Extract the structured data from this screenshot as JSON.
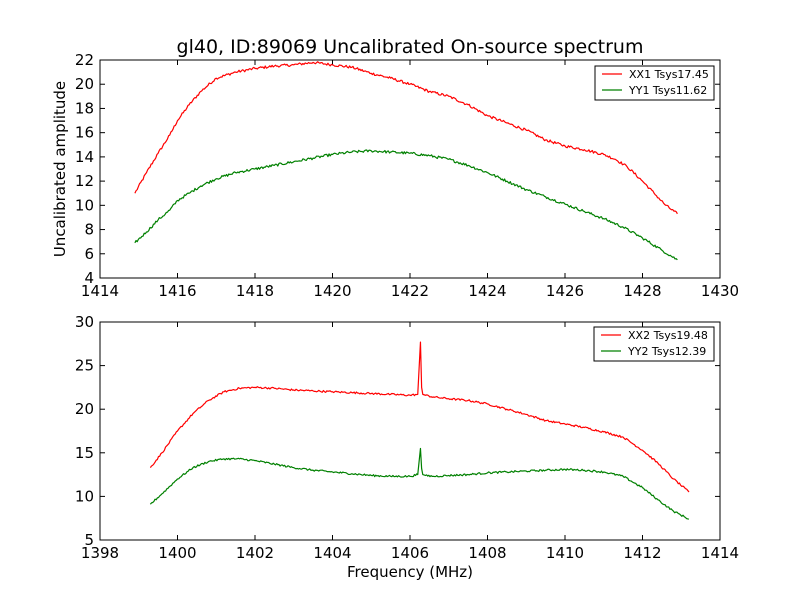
{
  "chart_data": [
    {
      "type": "line",
      "title": "gl40, ID:89069 Uncalibrated On-source spectrum",
      "xlabel": "",
      "ylabel": "Uncalibrated amplitude",
      "xlim": [
        1414,
        1430
      ],
      "ylim": [
        4,
        22
      ],
      "xticks": [
        1414,
        1416,
        1418,
        1420,
        1422,
        1424,
        1426,
        1428,
        1430
      ],
      "yticks": [
        4,
        6,
        8,
        10,
        12,
        14,
        16,
        18,
        20,
        22
      ],
      "grid": false,
      "legend_position": "top-right",
      "series": [
        {
          "name": "XX1 Tsys17.45",
          "color": "#ff0000",
          "x": [
            1414.9,
            1415.2,
            1415.5,
            1415.8,
            1416.0,
            1416.3,
            1416.6,
            1417.0,
            1417.5,
            1418.0,
            1418.5,
            1419.0,
            1419.5,
            1420.0,
            1420.5,
            1421.0,
            1421.5,
            1422.0,
            1422.5,
            1423.0,
            1423.5,
            1424.0,
            1424.5,
            1425.0,
            1425.5,
            1426.0,
            1426.5,
            1427.0,
            1427.3,
            1427.6,
            1428.0,
            1428.3,
            1428.6,
            1428.9
          ],
          "y": [
            11.0,
            12.7,
            14.3,
            15.8,
            17.0,
            18.3,
            19.4,
            20.5,
            21.0,
            21.3,
            21.5,
            21.6,
            21.8,
            21.6,
            21.4,
            20.9,
            20.5,
            20.0,
            19.4,
            19.0,
            18.3,
            17.4,
            16.8,
            16.2,
            15.4,
            14.9,
            14.6,
            14.2,
            13.8,
            13.2,
            12.0,
            11.0,
            10.0,
            9.3
          ]
        },
        {
          "name": "YY1 Tsys11.62",
          "color": "#008000",
          "x": [
            1414.9,
            1415.2,
            1415.5,
            1415.8,
            1416.0,
            1416.3,
            1416.6,
            1417.0,
            1417.5,
            1418.0,
            1418.5,
            1419.0,
            1419.5,
            1420.0,
            1420.5,
            1421.0,
            1421.5,
            1422.0,
            1422.5,
            1423.0,
            1423.5,
            1424.0,
            1424.5,
            1425.0,
            1425.5,
            1426.0,
            1426.5,
            1427.0,
            1427.5,
            1428.0,
            1428.5,
            1428.9
          ],
          "y": [
            6.9,
            7.8,
            8.8,
            9.6,
            10.4,
            11.0,
            11.6,
            12.2,
            12.7,
            13.0,
            13.3,
            13.6,
            13.9,
            14.2,
            14.4,
            14.5,
            14.4,
            14.3,
            14.1,
            13.8,
            13.3,
            12.7,
            12.0,
            11.3,
            10.7,
            10.1,
            9.5,
            8.9,
            8.2,
            7.3,
            6.3,
            5.5
          ]
        }
      ]
    },
    {
      "type": "line",
      "title": "",
      "xlabel": "Frequency (MHz)",
      "ylabel": "",
      "xlim": [
        1398,
        1414
      ],
      "ylim": [
        5,
        30
      ],
      "xticks": [
        1398,
        1400,
        1402,
        1404,
        1406,
        1408,
        1410,
        1412,
        1414
      ],
      "yticks": [
        5,
        10,
        15,
        20,
        25,
        30
      ],
      "grid": false,
      "legend_position": "top-right",
      "series": [
        {
          "name": "XX2 Tsys19.48",
          "color": "#ff0000",
          "x": [
            1399.3,
            1399.6,
            1400.0,
            1400.4,
            1400.8,
            1401.2,
            1401.6,
            1402.0,
            1402.5,
            1403.0,
            1403.5,
            1404.0,
            1404.5,
            1405.0,
            1405.5,
            1406.0,
            1406.2,
            1406.27,
            1406.3,
            1406.33,
            1406.4,
            1406.6,
            1407.0,
            1407.5,
            1408.0,
            1408.5,
            1409.0,
            1409.5,
            1410.0,
            1410.5,
            1411.0,
            1411.5,
            1412.0,
            1412.4,
            1412.8,
            1413.2
          ],
          "y": [
            13.3,
            15.0,
            17.5,
            19.5,
            21.0,
            22.0,
            22.4,
            22.5,
            22.4,
            22.2,
            22.1,
            22.0,
            21.9,
            21.8,
            21.7,
            21.6,
            21.7,
            27.7,
            22.5,
            21.7,
            21.6,
            21.4,
            21.2,
            21.0,
            20.6,
            20.0,
            19.4,
            18.7,
            18.3,
            17.9,
            17.4,
            16.8,
            15.3,
            13.8,
            12.0,
            10.5
          ]
        },
        {
          "name": "YY2 Tsys12.39",
          "color": "#008000",
          "x": [
            1399.3,
            1399.6,
            1400.0,
            1400.4,
            1400.8,
            1401.2,
            1401.6,
            1402.0,
            1402.5,
            1403.0,
            1403.5,
            1404.0,
            1404.5,
            1405.0,
            1405.5,
            1406.0,
            1406.2,
            1406.27,
            1406.3,
            1406.33,
            1406.4,
            1406.6,
            1407.0,
            1407.5,
            1408.0,
            1408.5,
            1409.0,
            1409.5,
            1410.0,
            1410.5,
            1411.0,
            1411.5,
            1412.0,
            1412.4,
            1412.8,
            1413.2
          ],
          "y": [
            9.1,
            10.3,
            12.0,
            13.3,
            14.0,
            14.3,
            14.3,
            14.1,
            13.7,
            13.3,
            13.0,
            12.8,
            12.6,
            12.4,
            12.3,
            12.3,
            12.5,
            15.5,
            13.2,
            12.5,
            12.4,
            12.3,
            12.4,
            12.5,
            12.7,
            12.8,
            12.9,
            13.0,
            13.1,
            13.0,
            12.8,
            12.3,
            11.0,
            9.6,
            8.3,
            7.4
          ]
        }
      ]
    }
  ]
}
